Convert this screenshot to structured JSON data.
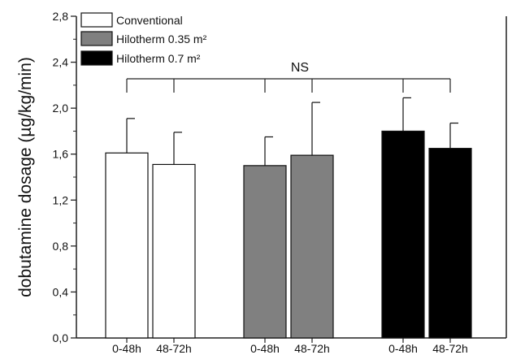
{
  "chart_data": {
    "type": "bar",
    "ylabel": "dobutamine dosage (µg/kg/min)",
    "ylim": [
      0,
      2.8
    ],
    "yticks": [
      "0,0",
      "0,4",
      "0,8",
      "1,2",
      "1,6",
      "2,0",
      "2,4",
      "2,8"
    ],
    "grid": false,
    "legend_position": "top-left",
    "annotation": "NS",
    "series": [
      {
        "name": "Conventional",
        "color": "#ffffff",
        "categories": [
          "0-48h",
          "48-72h"
        ],
        "values": [
          1.61,
          1.51
        ],
        "error": [
          0.3,
          0.28
        ]
      },
      {
        "name": "Hilotherm 0.35 m²",
        "color": "#808080",
        "categories": [
          "0-48h",
          "48-72h"
        ],
        "values": [
          1.5,
          1.59
        ],
        "error": [
          0.25,
          0.46
        ]
      },
      {
        "name": "Hilotherm 0.7 m²",
        "color": "#000000",
        "categories": [
          "0-48h",
          "48-72h"
        ],
        "values": [
          1.8,
          1.65
        ],
        "error": [
          0.29,
          0.22
        ]
      }
    ]
  }
}
